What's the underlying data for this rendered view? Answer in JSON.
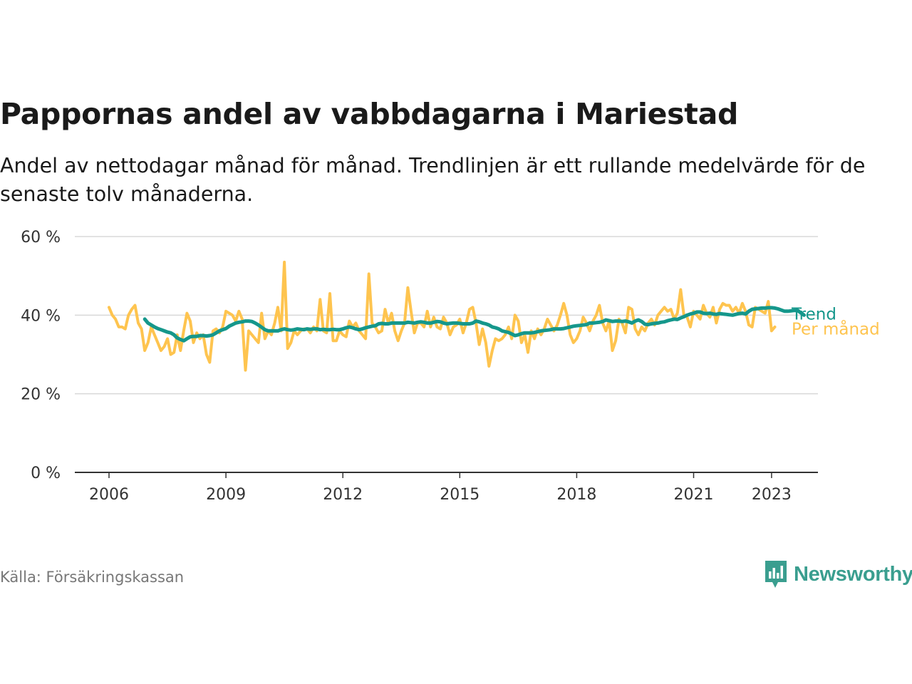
{
  "header": {
    "title": "Pappornas andel av vabbdagarna i Mariestad",
    "subtitle": "Andel av nettodagar månad för månad. Trendlinjen är ett rullande medelvärde för de senaste tolv månaderna."
  },
  "footer": {
    "source": "Källa: Försäkringskassan",
    "logo_text": "Newsworthy"
  },
  "colors": {
    "monthly": "#FEC44F",
    "trend": "#15978B",
    "grid": "#d8d8d8",
    "axis": "#333333",
    "logo": "#3a9e8f"
  },
  "chart_data": {
    "type": "line",
    "title": "Pappornas andel av vabbdagarna i Mariestad",
    "subtitle": "Andel av nettodagar månad för månad. Trendlinjen är ett rullande medelvärde för de senaste tolv månaderna.",
    "x_unit": "year",
    "xlim": [
      2006.0,
      2023.6
    ],
    "ylim": [
      0,
      60
    ],
    "y_ticks": [
      0,
      20,
      40,
      60
    ],
    "y_tick_labels": [
      "0 %",
      "20 %",
      "40 %",
      "60 %"
    ],
    "x_ticks": [
      2006,
      2009,
      2012,
      2015,
      2018,
      2021,
      2023
    ],
    "x_tick_labels": [
      "2006",
      "2009",
      "2012",
      "2015",
      "2018",
      "2021",
      "2023"
    ],
    "grid": true,
    "legend": "end-of-line labels",
    "series": [
      {
        "name": "Per månad",
        "color": "#FEC44F",
        "start": 2006.0,
        "step_months": 1,
        "values": [
          42.0,
          40.0,
          39.0,
          37.0,
          37.0,
          36.5,
          40.0,
          41.5,
          42.5,
          38.0,
          36.5,
          31.0,
          33.0,
          37.0,
          35.0,
          33.0,
          31.0,
          32.0,
          34.0,
          30.0,
          30.5,
          35.0,
          31.0,
          36.0,
          40.5,
          38.5,
          33.0,
          35.5,
          34.0,
          35.0,
          30.0,
          28.0,
          36.0,
          36.5,
          35.5,
          37.0,
          41.0,
          40.5,
          40.0,
          38.5,
          41.0,
          39.0,
          26.0,
          36.0,
          35.0,
          34.0,
          33.0,
          40.5,
          34.0,
          36.0,
          35.0,
          38.0,
          42.0,
          36.0,
          53.5,
          31.5,
          33.0,
          36.0,
          35.0,
          36.0,
          36.5,
          36.5,
          35.5,
          37.0,
          36.0,
          44.0,
          36.0,
          35.5,
          45.5,
          33.5,
          33.5,
          36.0,
          35.0,
          34.5,
          38.5,
          37.0,
          38.0,
          36.0,
          35.0,
          34.0,
          50.5,
          38.0,
          37.0,
          35.5,
          36.0,
          41.5,
          38.0,
          40.5,
          36.0,
          33.5,
          36.0,
          38.0,
          47.0,
          41.0,
          35.5,
          38.0,
          38.0,
          37.0,
          41.0,
          37.0,
          39.5,
          37.0,
          36.5,
          39.5,
          38.0,
          35.0,
          37.0,
          37.5,
          39.0,
          35.5,
          38.0,
          41.5,
          42.0,
          38.0,
          32.5,
          36.5,
          33.0,
          27.0,
          31.0,
          34.0,
          33.5,
          34.0,
          35.0,
          37.0,
          34.0,
          40.0,
          38.5,
          33.0,
          35.0,
          30.5,
          36.0,
          34.0,
          36.5,
          35.0,
          36.5,
          39.0,
          37.5,
          36.0,
          37.5,
          40.0,
          43.0,
          40.0,
          35.0,
          33.0,
          34.0,
          36.0,
          39.5,
          38.0,
          36.0,
          38.5,
          40.0,
          42.5,
          38.0,
          36.0,
          38.5,
          31.0,
          33.5,
          39.0,
          38.0,
          35.5,
          42.0,
          41.5,
          36.5,
          35.0,
          37.0,
          36.0,
          38.0,
          39.0,
          37.5,
          40.0,
          41.0,
          42.0,
          41.0,
          41.5,
          39.0,
          40.5,
          46.5,
          40.0,
          39.5,
          37.0,
          41.0,
          40.0,
          39.0,
          42.5,
          40.5,
          39.5,
          42.0,
          38.0,
          41.5,
          43.0,
          42.5,
          42.5,
          41.0,
          42.0,
          40.5,
          43.0,
          41.0,
          37.5,
          37.0,
          42.0,
          41.5,
          41.0,
          40.5,
          43.5,
          36.0,
          37.0
        ]
      },
      {
        "name": "Trend",
        "color": "#15978B",
        "start": 2006.917,
        "step_months": 1,
        "values": [
          39.0,
          38.0,
          37.5,
          37.0,
          36.6,
          36.3,
          36.0,
          35.7,
          35.5,
          35.0,
          34.2,
          33.8,
          33.5,
          34.0,
          34.5,
          34.6,
          34.6,
          34.8,
          34.8,
          34.7,
          34.8,
          35.0,
          35.5,
          36.0,
          36.3,
          36.6,
          37.2,
          37.6,
          38.0,
          38.2,
          38.3,
          38.5,
          38.5,
          38.4,
          38.0,
          37.5,
          36.9,
          36.3,
          36.0,
          36.0,
          36.0,
          36.0,
          36.3,
          36.5,
          36.3,
          36.2,
          36.3,
          36.5,
          36.4,
          36.3,
          36.5,
          36.4,
          36.5,
          36.5,
          36.3,
          36.4,
          36.3,
          36.3,
          36.4,
          36.3,
          36.3,
          36.5,
          36.8,
          37.0,
          36.8,
          36.5,
          36.3,
          36.5,
          36.8,
          37.0,
          37.2,
          37.3,
          37.8,
          37.9,
          37.8,
          37.8,
          38.0,
          38.0,
          38.0,
          38.0,
          38.0,
          38.2,
          38.1,
          38.0,
          38.2,
          38.3,
          38.2,
          38.0,
          38.0,
          38.2,
          38.4,
          38.3,
          38.0,
          37.8,
          37.9,
          38.0,
          38.0,
          37.9,
          37.8,
          37.8,
          37.8,
          38.0,
          38.5,
          38.3,
          38.0,
          37.8,
          37.5,
          37.0,
          36.8,
          36.5,
          36.0,
          35.8,
          35.6,
          35.2,
          34.8,
          35.0,
          35.3,
          35.5,
          35.5,
          35.5,
          35.6,
          35.8,
          36.0,
          36.1,
          36.2,
          36.3,
          36.5,
          36.5,
          36.5,
          36.6,
          36.8,
          37.0,
          37.2,
          37.3,
          37.4,
          37.5,
          37.6,
          38.0,
          38.0,
          38.1,
          38.2,
          38.4,
          38.8,
          38.6,
          38.4,
          38.5,
          38.5,
          38.4,
          38.5,
          38.3,
          38.0,
          38.5,
          38.8,
          38.4,
          37.7,
          37.6,
          37.8,
          37.9,
          38.0,
          38.2,
          38.3,
          38.6,
          38.8,
          39.0,
          38.9,
          39.3,
          39.6,
          40.0,
          40.3,
          40.5,
          40.8,
          40.8,
          40.5,
          40.4,
          40.5,
          40.3,
          40.2,
          40.4,
          40.3,
          40.2,
          40.1,
          40.0,
          40.2,
          40.4,
          40.5,
          40.3,
          41.0,
          41.5,
          41.6,
          41.7,
          41.8,
          41.8,
          41.9,
          41.9,
          41.8,
          41.6,
          41.3,
          41.0,
          41.0,
          41.1,
          41.2,
          41.2,
          40.6,
          40.0
        ]
      }
    ],
    "end_labels": [
      "Trend",
      "Per månad"
    ]
  }
}
